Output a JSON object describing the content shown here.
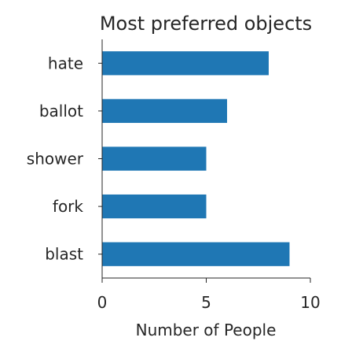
{
  "chart_data": {
    "type": "bar",
    "orientation": "horizontal",
    "title": "Most preferred objects",
    "xlabel": "Number of People",
    "ylabel": "",
    "categories": [
      "hate",
      "ballot",
      "shower",
      "fork",
      "blast"
    ],
    "values": [
      8,
      6,
      5,
      5,
      9
    ],
    "xlim": [
      0,
      10
    ],
    "xticks": [
      0,
      5,
      10
    ],
    "grid": false,
    "bar_color": "#1f77b4"
  }
}
